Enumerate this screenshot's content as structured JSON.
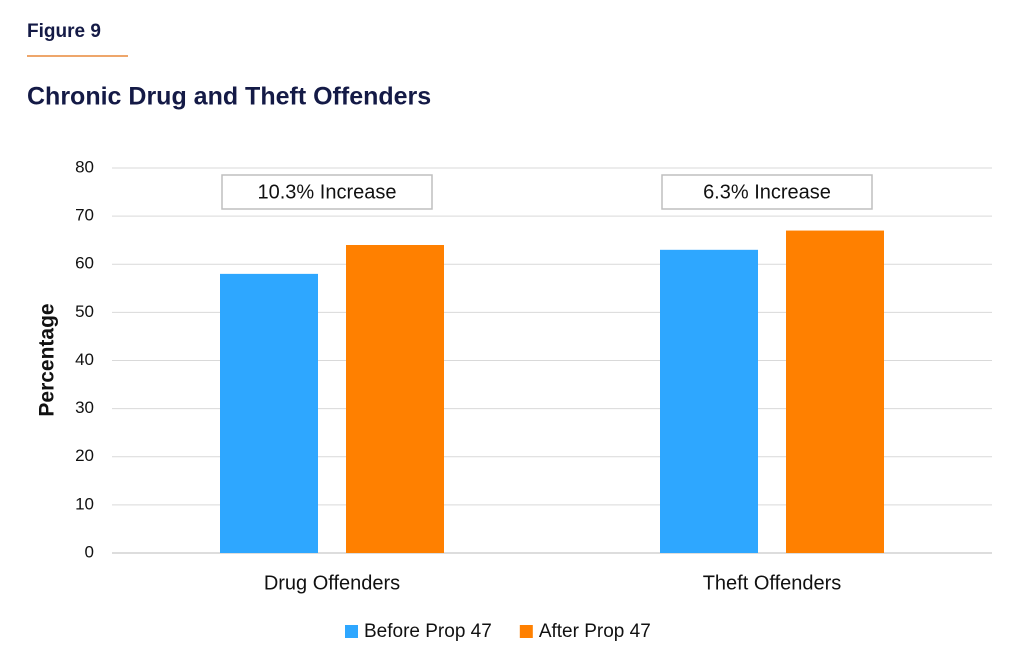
{
  "figure_label": "Figure 9",
  "chart_data": {
    "type": "bar",
    "title": "Chronic Drug and Theft Offenders",
    "y_label": "Percentage",
    "categories": [
      "Drug Offenders",
      "Theft Offenders"
    ],
    "series": [
      {
        "name": "Before Prop 47",
        "color": "#2ea7ff",
        "values": [
          58,
          63
        ]
      },
      {
        "name": "After Prop 47",
        "color": "#ff8000",
        "values": [
          64,
          67
        ]
      }
    ],
    "annotations": [
      "10.3% Increase",
      "6.3% Increase"
    ],
    "ylim": [
      0,
      80
    ],
    "yticks": [
      0,
      10,
      20,
      30,
      40,
      50,
      60,
      70,
      80
    ],
    "grid": true,
    "legend": "bottom"
  }
}
